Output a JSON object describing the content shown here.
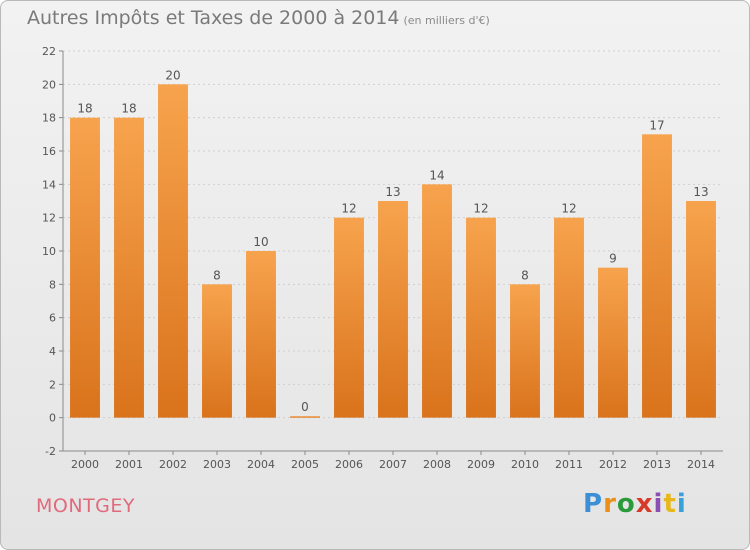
{
  "title": "Autres Impôts et Taxes de 2000 à 2014",
  "unit_note": "(en milliers d'€)",
  "commune": "MONTGEY",
  "logo": {
    "text": "Proxiti",
    "letters": [
      "P",
      "r",
      "o",
      "x",
      "i",
      "t",
      "i"
    ],
    "colors": [
      "#3a8fd6",
      "#e8901a",
      "#2a9a3a",
      "#d83a2a",
      "#8b4fb3",
      "#e8b81a",
      "#3aa0d8"
    ]
  },
  "colors": {
    "bar_light": "#f7a34d",
    "bar_dark": "#d9731c",
    "axis": "#8a8a8a",
    "grid": "#cfcfcf",
    "label": "#555555"
  },
  "chart_data": {
    "type": "bar",
    "categories": [
      "2000",
      "2001",
      "2002",
      "2003",
      "2004",
      "2005",
      "2006",
      "2007",
      "2008",
      "2009",
      "2010",
      "2011",
      "2012",
      "2013",
      "2014"
    ],
    "values": [
      18,
      18,
      20,
      8,
      10,
      0,
      12,
      13,
      14,
      12,
      8,
      12,
      9,
      17,
      13
    ],
    "ylim": [
      -2,
      22
    ],
    "yticks": [
      -2,
      0,
      2,
      4,
      6,
      8,
      10,
      12,
      14,
      16,
      18,
      20,
      22
    ],
    "grid": true
  }
}
